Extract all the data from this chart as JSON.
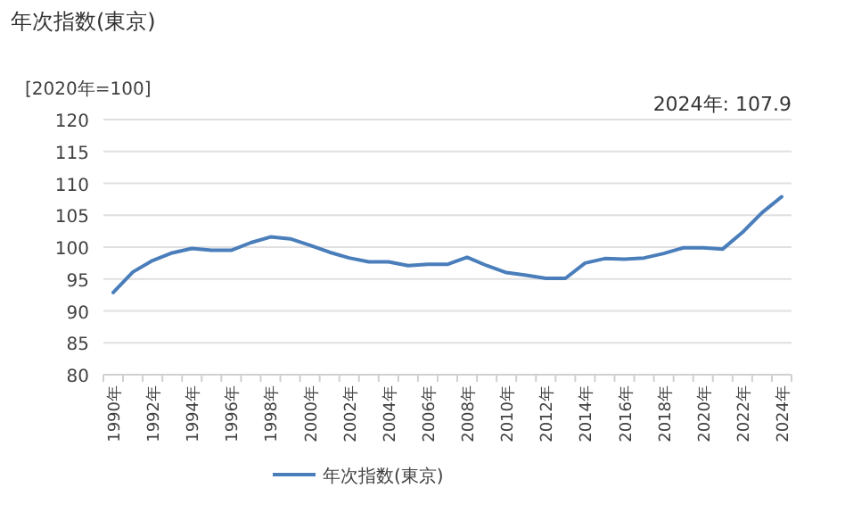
{
  "chart_data": {
    "type": "line",
    "title": "年次指数(東京)",
    "ylabel": "[2020年=100]",
    "annotations": [
      "2024年: 107.9"
    ],
    "categories": [
      "1990年",
      null,
      "1992年",
      null,
      "1994年",
      null,
      "1996年",
      null,
      "1998年",
      null,
      "2000年",
      null,
      "2002年",
      null,
      "2004年",
      null,
      "2006年",
      null,
      "2008年",
      null,
      "2010年",
      null,
      "2012年",
      null,
      "2014年",
      null,
      "2016年",
      null,
      "2018年",
      null,
      "2020年",
      null,
      "2022年",
      null,
      "2024年"
    ],
    "series": [
      {
        "name": "年次指数(東京)",
        "color": "#4a7ebb",
        "values": [
          92.9,
          96.1,
          97.9,
          99.1,
          99.8,
          99.5,
          99.5,
          100.7,
          101.6,
          101.3,
          100.3,
          99.2,
          98.3,
          97.7,
          97.7,
          97.1,
          97.3,
          97.3,
          98.4,
          97.1,
          96.0,
          95.6,
          95.1,
          95.1,
          97.5,
          98.2,
          98.1,
          98.3,
          99.0,
          99.9,
          99.9,
          99.7,
          102.3,
          105.4,
          107.9
        ]
      }
    ],
    "ylim": [
      80,
      120
    ],
    "yticks": [
      80,
      85,
      90,
      95,
      100,
      105,
      110,
      115,
      120
    ],
    "grid": "y",
    "legend": "bottom",
    "marker": "none",
    "line_style": "solid"
  }
}
